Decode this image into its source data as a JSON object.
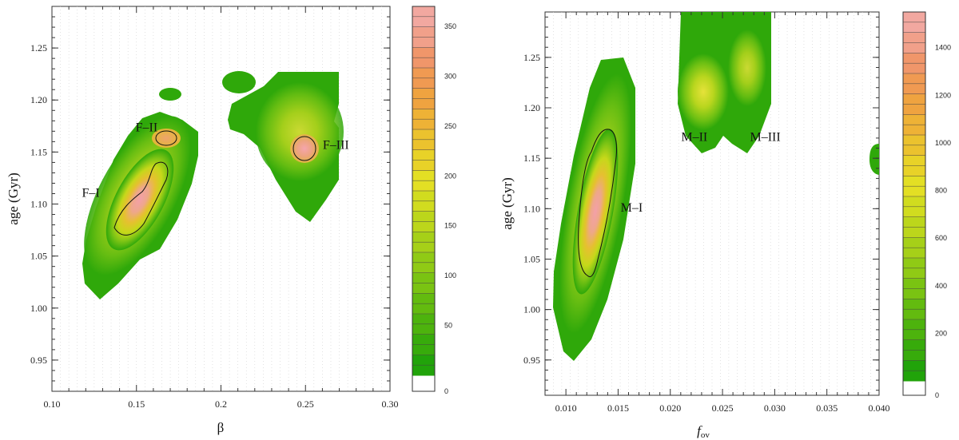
{
  "chart_data": [
    {
      "type": "heatmap",
      "title": "",
      "xlabel": "β",
      "ylabel": "age (Gyr)",
      "xlim": [
        0.1,
        0.3
      ],
      "ylim": [
        0.92,
        1.29
      ],
      "x_ticks": [
        "0.10",
        "0.15",
        "0.2",
        "0.25",
        "0.30"
      ],
      "x_tick_values": [
        0.1,
        0.15,
        0.2,
        0.25,
        0.3
      ],
      "y_ticks": [
        "0.95",
        "1.00",
        "1.05",
        "1.10",
        "1.15",
        "1.20",
        "1.25"
      ],
      "y_tick_values": [
        0.95,
        1.0,
        1.05,
        1.1,
        1.15,
        1.2,
        1.25
      ],
      "colorbar": {
        "min": 0,
        "max": 370,
        "ticks": [
          "0",
          "50",
          "100",
          "150",
          "200",
          "250",
          "300",
          "350"
        ],
        "tick_values": [
          0,
          50,
          100,
          150,
          200,
          250,
          300,
          350
        ]
      },
      "annotations": [
        {
          "text": "F–I",
          "x": 0.123,
          "y": 1.107
        },
        {
          "text": "F–II",
          "x": 0.156,
          "y": 1.17
        },
        {
          "text": "F–III",
          "x": 0.268,
          "y": 1.153
        }
      ],
      "peaks": [
        {
          "name": "F-I",
          "x": 0.15,
          "y": 1.095,
          "value": 360
        },
        {
          "name": "F-II",
          "x": 0.168,
          "y": 1.163,
          "value": 250
        },
        {
          "name": "F-III",
          "x": 0.251,
          "y": 1.155,
          "value": 290
        }
      ]
    },
    {
      "type": "heatmap",
      "title": "",
      "xlabel": "f",
      "xlabel_sub": "ov",
      "ylabel": "age (Gyr)",
      "xlim": [
        0.008,
        0.04
      ],
      "ylim": [
        0.915,
        1.295
      ],
      "x_ticks": [
        "0.010",
        "0.015",
        "0.020",
        "0.025",
        "0.030",
        "0.035",
        "0.040"
      ],
      "x_tick_values": [
        0.01,
        0.015,
        0.02,
        0.025,
        0.03,
        0.035,
        0.04
      ],
      "y_ticks": [
        "0.95",
        "1.00",
        "1.05",
        "1.10",
        "1.15",
        "1.20",
        "1.25"
      ],
      "y_tick_values": [
        0.95,
        1.0,
        1.05,
        1.1,
        1.15,
        1.2,
        1.25
      ],
      "colorbar": {
        "min": 0,
        "max": 1550,
        "ticks": [
          "0",
          "200",
          "400",
          "600",
          "800",
          "1000",
          "1200",
          "1400"
        ],
        "tick_values": [
          0,
          200,
          400,
          600,
          800,
          1000,
          1200,
          1400
        ]
      },
      "annotations": [
        {
          "text": "M–I",
          "x": 0.0163,
          "y": 1.097
        },
        {
          "text": "M–II",
          "x": 0.0223,
          "y": 1.167
        },
        {
          "text": "M–III",
          "x": 0.0291,
          "y": 1.167
        }
      ],
      "peaks": [
        {
          "name": "M-I",
          "x": 0.0125,
          "y": 1.095,
          "value": 1450
        },
        {
          "name": "M-II",
          "x": 0.023,
          "y": 1.22,
          "value": 650
        },
        {
          "name": "M-III",
          "x": 0.027,
          "y": 1.235,
          "value": 500
        }
      ]
    }
  ]
}
